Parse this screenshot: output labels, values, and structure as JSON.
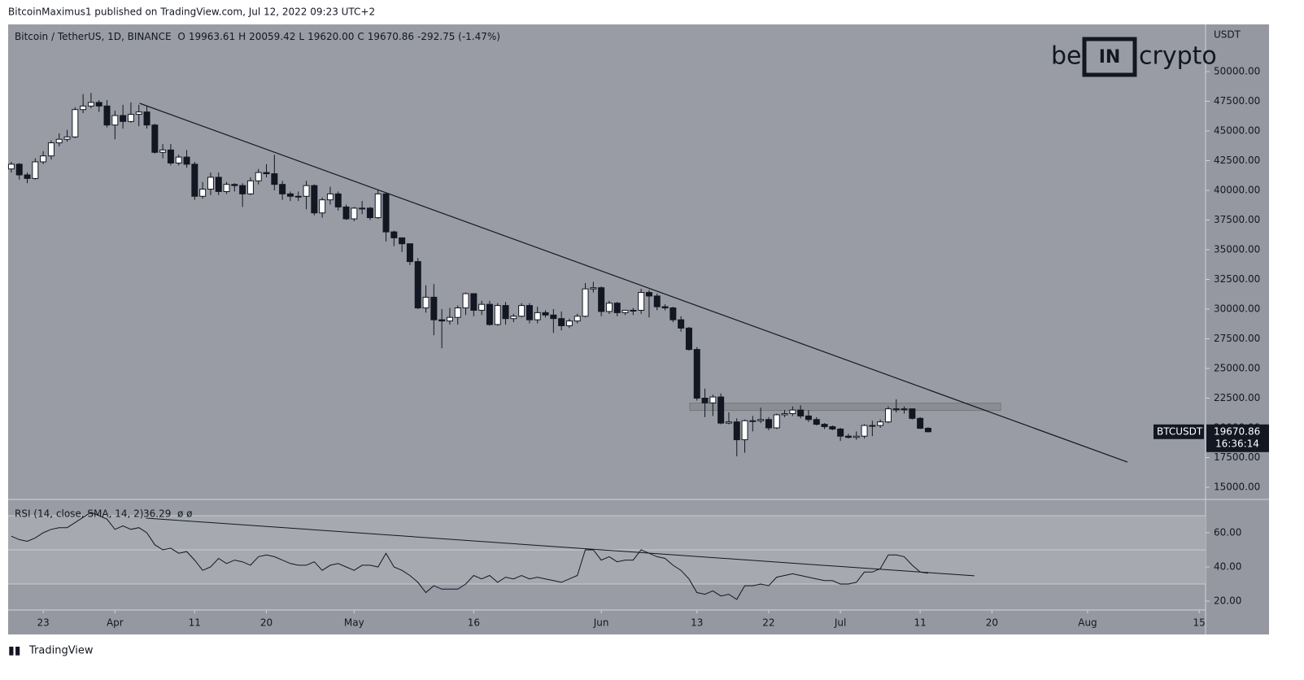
{
  "page": {
    "published": "BitcoinMaximus1 published on TradingView.com, Jul 12, 2022 09:23 UTC+2",
    "footer": "TradingView",
    "symbol_title": "Bitcoin / TetherUS, 1D, BINANCE",
    "ohlc_prefixes": [
      "O",
      "H",
      "L",
      "C"
    ],
    "ohlc_values": [
      "19963.61",
      "20059.42",
      "19620.00",
      "19670.86"
    ],
    "change": "-292.75 (-1.47%)",
    "currency": "USDT",
    "ticker": "BTCUSDT",
    "countdown": "16:36:14",
    "watermark": [
      "be",
      "IN",
      "crypto"
    ]
  },
  "chart_data": [
    {
      "type": "candlestick",
      "up_color": "#ffffff",
      "down_color": "#131722",
      "line_color": "#131722",
      "grid": false,
      "open": [
        41800,
        42200,
        41300,
        41000,
        42400,
        42900,
        44000,
        44300,
        44500,
        46800,
        47100,
        47400,
        47100,
        45500,
        46300,
        45800,
        46400,
        46600,
        45500,
        43200,
        43400,
        42300,
        42800,
        42200,
        39500,
        40100,
        41100,
        39900,
        40500,
        40400,
        39700,
        40800,
        41500,
        41400,
        40500,
        39700,
        39500,
        39500,
        40400,
        38100,
        39200,
        39700,
        38600,
        37600,
        38500,
        38500,
        37700,
        39700,
        36500,
        36000,
        35500,
        34000,
        30100,
        31000,
        29100,
        29000,
        29300,
        30100,
        31300,
        29900,
        30400,
        28700,
        30300,
        29200,
        29400,
        30300,
        29100,
        29700,
        29500,
        29200,
        28600,
        29000,
        29400,
        31700,
        31800,
        29800,
        30500,
        29700,
        29900,
        29900,
        31400,
        31100,
        30200,
        30100,
        29100,
        28400,
        26600,
        22500,
        22100,
        22600,
        20400,
        20500,
        19000,
        20600,
        20600,
        20700,
        20000,
        21100,
        21200,
        21500,
        21000,
        20700,
        20300,
        20100,
        19900,
        19300,
        19200,
        19300,
        20200,
        20200,
        20500,
        21600,
        21600,
        21600,
        20800,
        19963.61
      ],
      "high": [
        42400,
        42300,
        41500,
        42700,
        43300,
        44200,
        44800,
        45100,
        47000,
        48100,
        48200,
        47600,
        47600,
        46700,
        47200,
        47400,
        47200,
        47100,
        45600,
        43900,
        43900,
        43000,
        43400,
        42400,
        40700,
        41500,
        41500,
        40700,
        40600,
        40600,
        41100,
        41800,
        42200,
        43000,
        40800,
        39900,
        39900,
        40800,
        40500,
        39400,
        40300,
        39900,
        38800,
        38600,
        39100,
        38600,
        40000,
        39800,
        36600,
        36000,
        35500,
        34300,
        32000,
        32100,
        30000,
        30100,
        30300,
        31400,
        31300,
        30700,
        30700,
        30500,
        30600,
        29600,
        30500,
        30500,
        30200,
        29900,
        30000,
        29800,
        29200,
        29600,
        32200,
        32300,
        31900,
        30700,
        30600,
        29900,
        30100,
        31700,
        31600,
        31300,
        30400,
        30200,
        29400,
        28500,
        26800,
        23300,
        22800,
        22900,
        21300,
        20800,
        20700,
        21000,
        21700,
        20900,
        21200,
        21500,
        21800,
        21900,
        21500,
        20900,
        20400,
        20200,
        20000,
        19500,
        19700,
        20300,
        20600,
        20700,
        21800,
        22400,
        21800,
        21600,
        20900,
        20059.42
      ],
      "low": [
        41500,
        40900,
        40600,
        40900,
        42200,
        42600,
        43700,
        44100,
        44400,
        46500,
        46900,
        46600,
        45300,
        44300,
        45200,
        45700,
        45400,
        45200,
        43100,
        42700,
        42100,
        42100,
        41900,
        39200,
        39300,
        39600,
        39600,
        39700,
        39900,
        38600,
        39600,
        40500,
        41100,
        40000,
        39200,
        39100,
        39100,
        38400,
        37900,
        37700,
        38800,
        38300,
        37500,
        37400,
        38000,
        37500,
        37600,
        35700,
        35300,
        34800,
        33700,
        30000,
        29700,
        27800,
        26700,
        28700,
        28700,
        29500,
        29400,
        29500,
        28600,
        28600,
        28700,
        28900,
        29300,
        28800,
        28800,
        29300,
        28000,
        28200,
        28400,
        28800,
        29300,
        31400,
        29400,
        29600,
        29400,
        29500,
        29500,
        29600,
        29300,
        29900,
        29900,
        28900,
        28100,
        26500,
        22300,
        20900,
        21000,
        20300,
        20300,
        17600,
        17900,
        19700,
        20400,
        19800,
        19900,
        20900,
        21000,
        20800,
        20500,
        20200,
        19900,
        19800,
        18900,
        19100,
        19000,
        19100,
        19300,
        20000,
        20400,
        21300,
        21200,
        20700,
        19900,
        19620
      ],
      "close": [
        42200,
        41300,
        41000,
        42400,
        42900,
        44000,
        44300,
        44500,
        46800,
        47100,
        47400,
        47100,
        45500,
        46300,
        45800,
        46400,
        46600,
        45500,
        43200,
        43400,
        42300,
        42800,
        42200,
        39500,
        40100,
        41100,
        39900,
        40500,
        40400,
        39700,
        40800,
        41500,
        41400,
        40500,
        39700,
        39500,
        39500,
        40400,
        38100,
        39200,
        39700,
        38600,
        37600,
        38500,
        38500,
        37700,
        39700,
        36500,
        36000,
        35500,
        34000,
        30100,
        31000,
        29100,
        29000,
        29300,
        30100,
        31300,
        29900,
        30400,
        28700,
        30300,
        29200,
        29400,
        30300,
        29100,
        29700,
        29500,
        29200,
        28600,
        29000,
        29400,
        31700,
        31800,
        29800,
        30500,
        29700,
        29900,
        29900,
        31400,
        31100,
        30200,
        30100,
        29100,
        28400,
        26600,
        22500,
        22100,
        22600,
        20400,
        20500,
        19000,
        20600,
        20600,
        20700,
        20000,
        21100,
        21200,
        21500,
        21000,
        20700,
        20300,
        20100,
        19900,
        19300,
        19200,
        19300,
        20200,
        20200,
        20500,
        21600,
        21600,
        21600,
        20800,
        19963.61,
        19670.86
      ],
      "xlim": [
        -0.4,
        149.8
      ],
      "ylim": [
        14041,
        53973
      ],
      "xticks": [
        {
          "value": 4,
          "label": "23"
        },
        {
          "value": 13,
          "label": "Apr"
        },
        {
          "value": 23,
          "label": "11"
        },
        {
          "value": 32,
          "label": "20"
        },
        {
          "value": 43,
          "label": "May"
        },
        {
          "value": 58,
          "label": "16"
        },
        {
          "value": 74,
          "label": "Jun"
        },
        {
          "value": 86,
          "label": "13"
        },
        {
          "value": 95,
          "label": "22"
        },
        {
          "value": 104,
          "label": "Jul"
        },
        {
          "value": 114,
          "label": "11"
        },
        {
          "value": 123,
          "label": "20"
        },
        {
          "value": 135,
          "label": "Aug"
        },
        {
          "value": 149,
          "label": "15"
        }
      ],
      "yticks": [
        {
          "value": 15000,
          "label": "15000.00"
        },
        {
          "value": 17500,
          "label": "17500.00"
        },
        {
          "value": 20000,
          "label": "20000.00"
        },
        {
          "value": 22500,
          "label": "22500.00"
        },
        {
          "value": 25000,
          "label": "25000.00"
        },
        {
          "value": 27500,
          "label": "27500.00"
        },
        {
          "value": 30000,
          "label": "30000.00"
        },
        {
          "value": 32500,
          "label": "32500.00"
        },
        {
          "value": 35000,
          "label": "35000.00"
        },
        {
          "value": 37500,
          "label": "37500.00"
        },
        {
          "value": 40000,
          "label": "40000.00"
        },
        {
          "value": 42500,
          "label": "42500.00"
        },
        {
          "value": 45000,
          "label": "45000.00"
        },
        {
          "value": 47500,
          "label": "47500.00"
        },
        {
          "value": 50000,
          "label": "50000.00"
        }
      ],
      "trendline": {
        "x": [
          16.1,
          140
        ],
        "y": [
          47329,
          17120
        ]
      },
      "zone": {
        "x": [
          85.1,
          124.1
        ],
        "y": [
          21465,
          22080
        ],
        "color": "#8a8d94"
      }
    },
    {
      "type": "line",
      "title": "RSI (14, close, SMA, 14, 2)",
      "extra": "ø ø",
      "color": "#131722",
      "band_color": "#a6a9b0",
      "values": [
        58,
        56,
        55,
        57,
        60,
        62,
        63,
        63,
        66,
        69,
        72,
        70,
        68,
        62,
        64,
        62,
        63,
        60,
        53,
        50,
        51,
        48,
        49,
        44,
        38,
        40,
        45,
        42,
        44,
        43,
        41,
        46,
        47,
        46,
        44,
        42,
        41,
        41,
        43,
        38,
        41,
        42,
        40,
        38,
        41,
        41,
        40,
        48,
        40,
        38,
        35,
        31,
        25,
        29,
        27,
        27,
        27,
        30,
        35,
        33,
        35,
        31,
        34,
        33,
        35,
        33,
        34,
        33,
        32,
        31,
        33,
        35,
        50,
        50,
        44,
        46,
        43,
        44,
        44,
        50,
        48,
        46,
        45,
        41,
        38,
        33,
        25,
        24,
        26,
        23,
        24,
        21,
        29,
        29,
        30,
        29,
        34,
        35,
        36,
        35,
        34,
        33,
        32,
        32,
        30,
        30,
        31,
        37,
        37,
        39,
        47,
        47,
        46,
        41,
        37,
        36.29
      ],
      "ylim": [
        14.76,
        79.05
      ],
      "levels": [
        30,
        50,
        70
      ],
      "yticks": [
        {
          "value": 20,
          "label": "20.00"
        },
        {
          "value": 40,
          "label": "40.00"
        },
        {
          "value": 60,
          "label": "60.00"
        }
      ],
      "trendline": {
        "x": [
          16.9,
          120.8
        ],
        "y": [
          68.6,
          34.8
        ]
      }
    }
  ]
}
